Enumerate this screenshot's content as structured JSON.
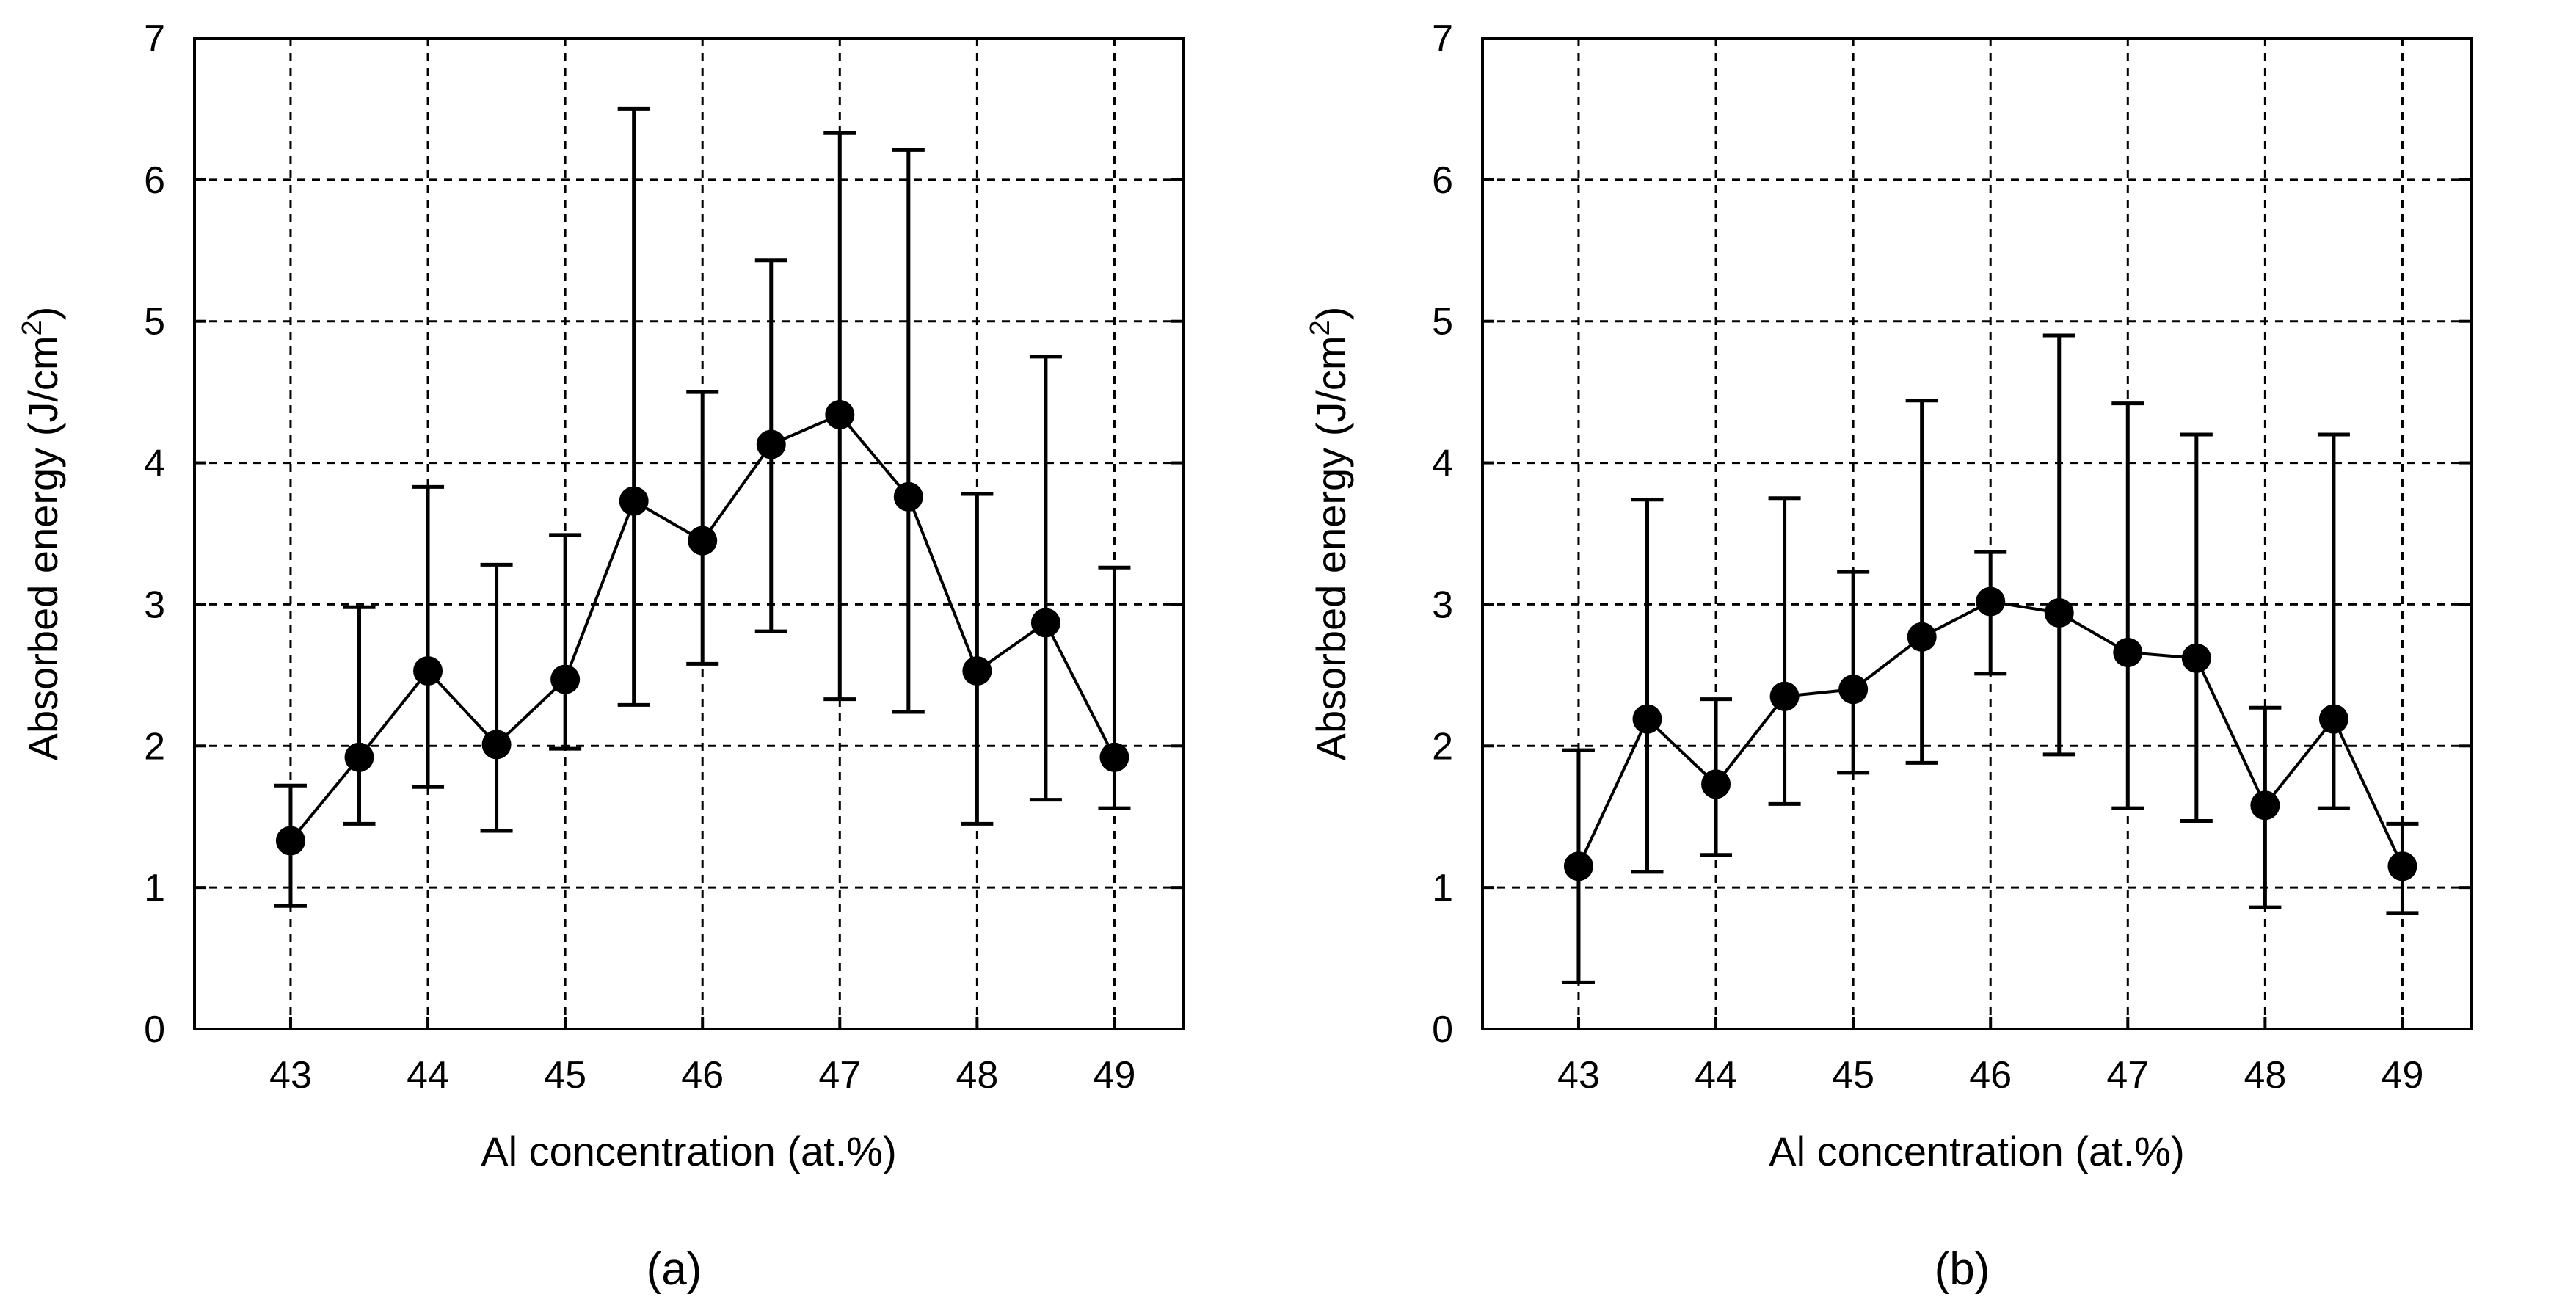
{
  "chart_data": [
    {
      "type": "line",
      "panel_label": "(a)",
      "title": "",
      "xlabel": "Al concentration (at.%)",
      "ylabel": "Absorbed energy (J/cm",
      "ylabel_sup": "2",
      "ylabel_close": ")",
      "xlim": [
        42.3,
        49.5
      ],
      "ylim": [
        0,
        7
      ],
      "xticks": [
        43,
        44,
        45,
        46,
        47,
        48,
        49
      ],
      "yticks": [
        0,
        1,
        2,
        3,
        4,
        5,
        6,
        7
      ],
      "grid": "dashed",
      "x": [
        43,
        43.5,
        44,
        44.5,
        45,
        45.5,
        46,
        46.5,
        47,
        47.5,
        48,
        48.5,
        49
      ],
      "y": [
        1.33,
        1.92,
        2.53,
        2.01,
        2.47,
        3.73,
        3.45,
        4.13,
        4.34,
        3.76,
        2.53,
        2.87,
        1.92
      ],
      "y_upper": [
        1.72,
        2.98,
        3.83,
        3.28,
        3.49,
        6.5,
        4.5,
        5.43,
        6.33,
        6.21,
        3.78,
        4.75,
        3.26
      ],
      "y_lower": [
        0.87,
        1.45,
        1.71,
        1.4,
        1.98,
        2.29,
        2.58,
        2.81,
        2.33,
        2.24,
        1.45,
        1.62,
        1.56
      ]
    },
    {
      "type": "line",
      "panel_label": "(b)",
      "title": "",
      "xlabel": "Al concentration (at.%)",
      "ylabel": "Absorbed energy (J/cm",
      "ylabel_sup": "2",
      "ylabel_close": ")",
      "xlim": [
        42.3,
        49.5
      ],
      "ylim": [
        0,
        7
      ],
      "xticks": [
        43,
        44,
        45,
        46,
        47,
        48,
        49
      ],
      "yticks": [
        0,
        1,
        2,
        3,
        4,
        5,
        6,
        7
      ],
      "grid": "dashed",
      "x": [
        43,
        43.5,
        44,
        44.5,
        45,
        45.5,
        46,
        46.5,
        47,
        47.5,
        48,
        48.5,
        49
      ],
      "y": [
        1.15,
        2.19,
        1.73,
        2.35,
        2.4,
        2.77,
        3.02,
        2.94,
        2.66,
        2.62,
        1.58,
        2.19,
        1.15
      ],
      "y_upper": [
        1.97,
        3.74,
        2.33,
        3.75,
        3.23,
        4.44,
        3.37,
        4.9,
        4.42,
        4.2,
        2.27,
        4.2,
        1.45
      ],
      "y_lower": [
        0.33,
        1.11,
        1.23,
        1.59,
        1.81,
        1.88,
        2.51,
        1.94,
        1.56,
        1.47,
        0.86,
        1.56,
        0.82
      ]
    }
  ]
}
